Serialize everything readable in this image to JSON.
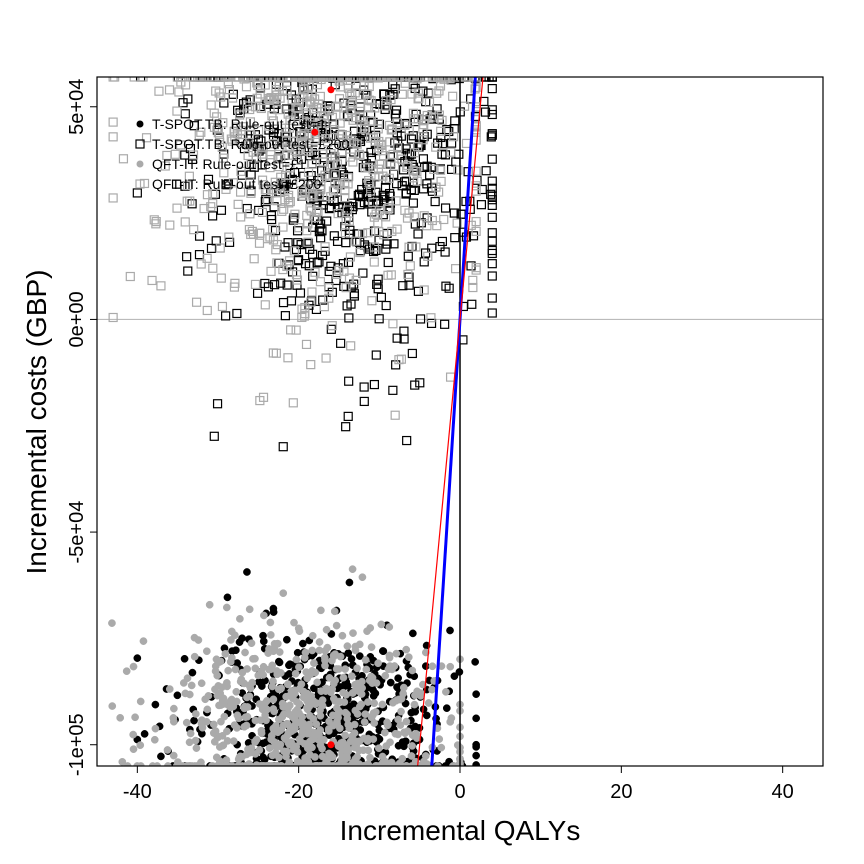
{
  "chart_data": {
    "type": "scatter",
    "xlabel": "Incremental QALYs",
    "ylabel": "Incremental costs (GBP)",
    "xlim": [
      -45,
      45
    ],
    "ylim": [
      -105000,
      57000
    ],
    "x_ticks": [
      -40,
      -20,
      0,
      20,
      40
    ],
    "x_tick_labels": [
      "-40",
      "-20",
      "0",
      "20",
      "40"
    ],
    "y_ticks": [
      -100000,
      -50000,
      0,
      50000
    ],
    "y_tick_labels": [
      "-1e+05",
      "-5e+04",
      "0e+00",
      "5e+04"
    ],
    "reference_lines": [
      {
        "orientation": "horizontal",
        "value": 0,
        "color": "#bbbbbb"
      },
      {
        "orientation": "vertical",
        "value": 0,
        "color": "#000000"
      }
    ],
    "threshold_lines": [
      {
        "slope": 30000,
        "color": "#0000ff"
      },
      {
        "slope": 20000,
        "color": "#ff0000"
      }
    ],
    "legend": {
      "placement": "top-left",
      "entries": [
        {
          "label": "T-SPOT.TB: Rule-out test=1",
          "marker": "filled-circle",
          "color": "#000000"
        },
        {
          "label": "T-SPOT.TB: Rule-out test=£200",
          "marker": "open-square",
          "color": "#000000"
        },
        {
          "label": "QFT-IT: Rule-out test=£1",
          "marker": "filled-circle",
          "color": "#aaaaaa"
        },
        {
          "label": "QFT-IT: Rule-out test=£200",
          "marker": "open-square",
          "color": "#aaaaaa"
        }
      ]
    },
    "series": [
      {
        "name": "T-SPOT.TB: Rule-out test=1",
        "marker": "filled-circle",
        "color": "#000000",
        "mean": [
          -17,
          -97000
        ],
        "spread": [
          8,
          12000
        ],
        "n": 700,
        "x_range": [
          -40,
          2
        ],
        "y_range": [
          -105000,
          -48000
        ]
      },
      {
        "name": "T-SPOT.TB: Rule-out test=£200",
        "marker": "open-square",
        "color": "#000000",
        "mean": [
          -13,
          40000
        ],
        "spread": [
          9,
          25000
        ],
        "n": 700,
        "x_range": [
          -40,
          4
        ],
        "y_range": [
          -50000,
          57000
        ]
      },
      {
        "name": "QFT-IT: Rule-out test=£1",
        "marker": "filled-circle",
        "color": "#aaaaaa",
        "mean": [
          -19,
          -96000
        ],
        "spread": [
          9,
          12000
        ],
        "n": 700,
        "x_range": [
          -44,
          0
        ],
        "y_range": [
          -105000,
          -48000
        ]
      },
      {
        "name": "QFT-IT: Rule-out test=£200",
        "marker": "open-square",
        "color": "#aaaaaa",
        "mean": [
          -17,
          44000
        ],
        "spread": [
          10,
          22000
        ],
        "n": 700,
        "x_range": [
          -43,
          2
        ],
        "y_range": [
          -50000,
          57000
        ]
      }
    ],
    "means": [
      {
        "x": -16,
        "y": -100000,
        "color": "#ff0000"
      },
      {
        "x": -16,
        "y": 54000,
        "color": "#ff0000"
      },
      {
        "x": -18,
        "y": 44000,
        "color": "#ff0000"
      }
    ]
  }
}
